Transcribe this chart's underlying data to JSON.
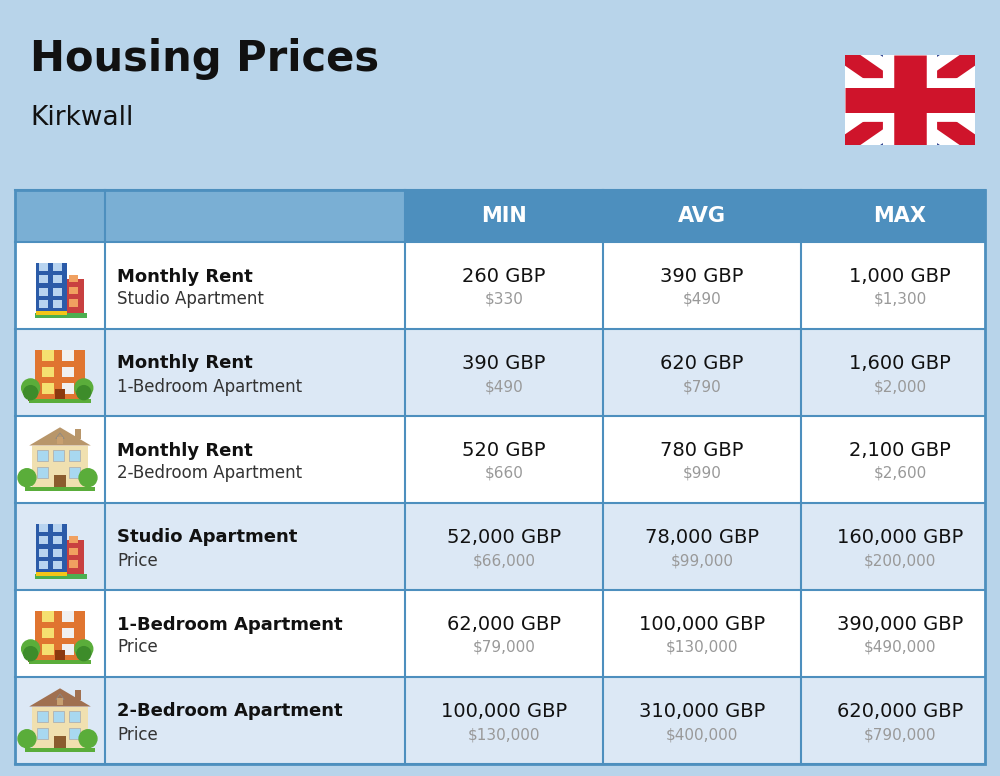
{
  "title": "Housing Prices",
  "subtitle": "Kirkwall",
  "background_color": "#b8d4ea",
  "header_bg_color": "#4d8fbe",
  "header_text_color": "#ffffff",
  "row_bg_color_light": "#ffffff",
  "row_bg_color_alt": "#dce8f5",
  "col_divider_color": "#4d8fbe",
  "header_labels": [
    "MIN",
    "AVG",
    "MAX"
  ],
  "rows": [
    {
      "bold_label": "Monthly Rent",
      "sub_label": "Studio Apartment",
      "min_gbp": "260 GBP",
      "min_usd": "$330",
      "avg_gbp": "390 GBP",
      "avg_usd": "$490",
      "max_gbp": "1,000 GBP",
      "max_usd": "$1,300",
      "icon_type": "studio_blue"
    },
    {
      "bold_label": "Monthly Rent",
      "sub_label": "1-Bedroom Apartment",
      "min_gbp": "390 GBP",
      "min_usd": "$490",
      "avg_gbp": "620 GBP",
      "avg_usd": "$790",
      "max_gbp": "1,600 GBP",
      "max_usd": "$2,000",
      "icon_type": "apartment_orange"
    },
    {
      "bold_label": "Monthly Rent",
      "sub_label": "2-Bedroom Apartment",
      "min_gbp": "520 GBP",
      "min_usd": "$660",
      "avg_gbp": "780 GBP",
      "avg_usd": "$990",
      "max_gbp": "2,100 GBP",
      "max_usd": "$2,600",
      "icon_type": "house_beige"
    },
    {
      "bold_label": "Studio Apartment",
      "sub_label": "Price",
      "min_gbp": "52,000 GBP",
      "min_usd": "$66,000",
      "avg_gbp": "78,000 GBP",
      "avg_usd": "$99,000",
      "max_gbp": "160,000 GBP",
      "max_usd": "$200,000",
      "icon_type": "studio_blue"
    },
    {
      "bold_label": "1-Bedroom Apartment",
      "sub_label": "Price",
      "min_gbp": "62,000 GBP",
      "min_usd": "$79,000",
      "avg_gbp": "100,000 GBP",
      "avg_usd": "$130,000",
      "max_gbp": "390,000 GBP",
      "max_usd": "$490,000",
      "icon_type": "apartment_orange"
    },
    {
      "bold_label": "2-Bedroom Apartment",
      "sub_label": "Price",
      "min_gbp": "100,000 GBP",
      "min_usd": "$130,000",
      "avg_gbp": "310,000 GBP",
      "avg_usd": "$400,000",
      "max_gbp": "620,000 GBP",
      "max_usd": "$790,000",
      "icon_type": "house_brown"
    }
  ],
  "title_fontsize": 30,
  "subtitle_fontsize": 19,
  "header_fontsize": 15,
  "cell_gbp_fontsize": 14,
  "cell_usd_fontsize": 11,
  "label_bold_fontsize": 13,
  "label_sub_fontsize": 12
}
